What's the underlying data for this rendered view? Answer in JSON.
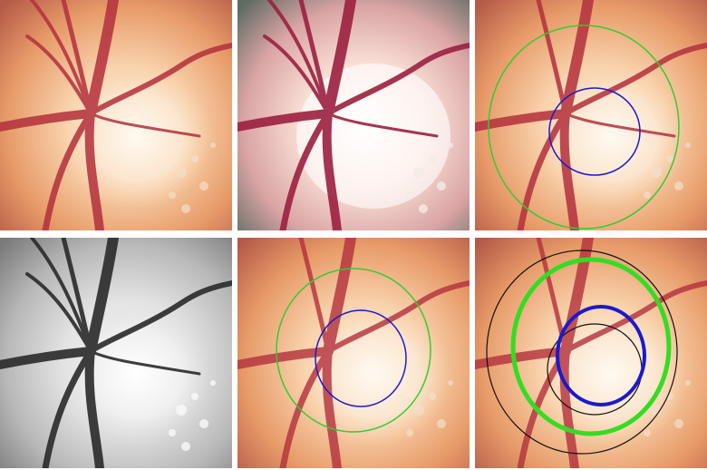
{
  "figure": {
    "panels": [
      {
        "id": "p1",
        "kind": "original-fundus"
      },
      {
        "id": "p2",
        "kind": "enhanced-fundus"
      },
      {
        "id": "p3",
        "kind": "fundus-with-contours",
        "contours": [
          "disc-green",
          "cup-blue"
        ]
      },
      {
        "id": "p4",
        "kind": "grayscale-fundus"
      },
      {
        "id": "p5",
        "kind": "fundus-with-contours",
        "contours": [
          "disc-green",
          "cup-blue"
        ]
      },
      {
        "id": "p6",
        "kind": "fundus-with-contours-comparison",
        "contours": [
          "disc-green-thick",
          "cup-blue-thick",
          "disc-black",
          "cup-black"
        ]
      }
    ]
  },
  "colors": {
    "disc_contour": "#33cc33",
    "cup_contour": "#1a1acc",
    "reference_contour": "#111111",
    "vessel": "#a8202c",
    "disc_bright": "#fbe9d6",
    "background_orange": "#e8a060"
  },
  "icons": {}
}
